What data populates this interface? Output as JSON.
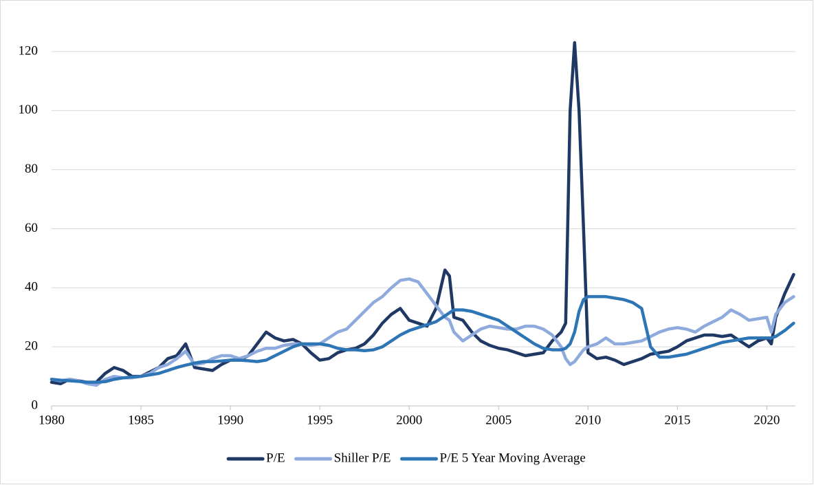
{
  "chart_data": {
    "type": "line",
    "x": [
      1980,
      1980.5,
      1981,
      1981.5,
      1982,
      1982.5,
      1983,
      1983.5,
      1984,
      1984.5,
      1985,
      1985.5,
      1986,
      1986.5,
      1987,
      1987.5,
      1988,
      1988.5,
      1989,
      1989.5,
      1990,
      1990.5,
      1991,
      1991.5,
      1992,
      1992.5,
      1993,
      1993.5,
      1994,
      1994.5,
      1995,
      1995.5,
      1996,
      1996.5,
      1997,
      1997.5,
      1998,
      1998.5,
      1999,
      1999.5,
      2000,
      2000.5,
      2001,
      2001.5,
      2002,
      2002.25,
      2002.5,
      2003,
      2003.5,
      2004,
      2004.5,
      2005,
      2005.5,
      2006,
      2006.5,
      2007,
      2007.5,
      2008,
      2008.5,
      2008.75,
      2009,
      2009.25,
      2009.5,
      2009.75,
      2010,
      2010.5,
      2011,
      2011.5,
      2012,
      2012.5,
      2013,
      2013.5,
      2014,
      2014.5,
      2015,
      2015.5,
      2016,
      2016.5,
      2017,
      2017.5,
      2018,
      2018.5,
      2019,
      2019.5,
      2020,
      2020.25,
      2020.5,
      2021,
      2021.5
    ],
    "series": [
      {
        "name": "P/E",
        "color": "#203864",
        "values": [
          8,
          7.5,
          9,
          8.5,
          8,
          8,
          11,
          13,
          12,
          10,
          10,
          11.5,
          13,
          16,
          17,
          21,
          13,
          12.5,
          12,
          14,
          15.5,
          15.5,
          17,
          21,
          25,
          23,
          22,
          22.5,
          21,
          18,
          15.5,
          16,
          18,
          19,
          19.5,
          21,
          24,
          28,
          31,
          33,
          29,
          28,
          27,
          33,
          46,
          44,
          30,
          29,
          25,
          22,
          20.5,
          19.5,
          19,
          18,
          17,
          17.5,
          18,
          22,
          25,
          28,
          100,
          123,
          100,
          60,
          18,
          16,
          16.5,
          15.5,
          14,
          15,
          16,
          17.5,
          18,
          18.5,
          20,
          22,
          23,
          24,
          24,
          23.5,
          24,
          22,
          20,
          22,
          23,
          21,
          30,
          38,
          44.5
        ]
      },
      {
        "name": "Shiller P/E",
        "color": "#8faadc",
        "values": [
          9,
          8.5,
          9,
          8.5,
          7.5,
          7,
          9,
          10,
          9.5,
          9.5,
          10,
          11,
          13,
          14,
          16,
          18.5,
          14,
          14.5,
          16,
          17,
          17,
          16,
          17,
          18.5,
          19.5,
          19.5,
          20.5,
          21,
          21,
          20.5,
          21,
          23,
          25,
          26,
          29,
          32,
          35,
          37,
          40,
          42.5,
          43,
          42,
          38,
          34,
          30,
          29,
          25,
          22,
          24,
          26,
          27,
          26.5,
          26,
          26,
          27,
          27,
          26,
          24,
          20,
          16,
          14,
          15,
          17,
          19,
          20,
          21,
          23,
          21,
          21,
          21.5,
          22,
          23.5,
          25,
          26,
          26.5,
          26,
          25,
          27,
          28.5,
          30,
          32.5,
          31,
          29,
          29.5,
          30,
          25,
          31,
          35,
          37
        ]
      },
      {
        "name": "P/E 5 Year Moving Average",
        "color": "#2e75b6",
        "values": [
          9,
          8.7,
          8.5,
          8.3,
          8,
          8,
          8.2,
          9,
          9.5,
          9.8,
          10,
          10.5,
          11,
          12,
          13,
          13.8,
          14.5,
          15,
          15,
          15.2,
          15.5,
          15.5,
          15.3,
          15,
          15.5,
          17,
          18.5,
          20,
          21,
          21,
          21,
          20.5,
          19.5,
          19,
          19,
          18.7,
          19,
          20,
          22,
          24,
          25.5,
          26.5,
          27.5,
          28.5,
          30.5,
          31.5,
          32.5,
          32.5,
          32,
          31,
          30,
          29,
          27,
          25,
          23,
          21,
          19.5,
          19,
          19,
          19.5,
          21,
          25,
          32,
          36,
          37,
          37,
          37,
          36.5,
          36,
          35,
          33,
          20,
          16.5,
          16.5,
          17,
          17.5,
          18.5,
          19.5,
          20.5,
          21.5,
          22,
          22.5,
          23,
          23,
          23,
          23,
          23.5,
          25.5,
          28
        ]
      }
    ],
    "xlim": [
      1980,
      2021.6
    ],
    "xticks": [
      1980,
      1985,
      1990,
      1995,
      2000,
      2005,
      2010,
      2015,
      2020
    ],
    "ylim": [
      0,
      130
    ],
    "yticks": [
      0,
      20,
      40,
      60,
      80,
      100,
      120
    ],
    "grid": true,
    "legend": "bottom"
  }
}
